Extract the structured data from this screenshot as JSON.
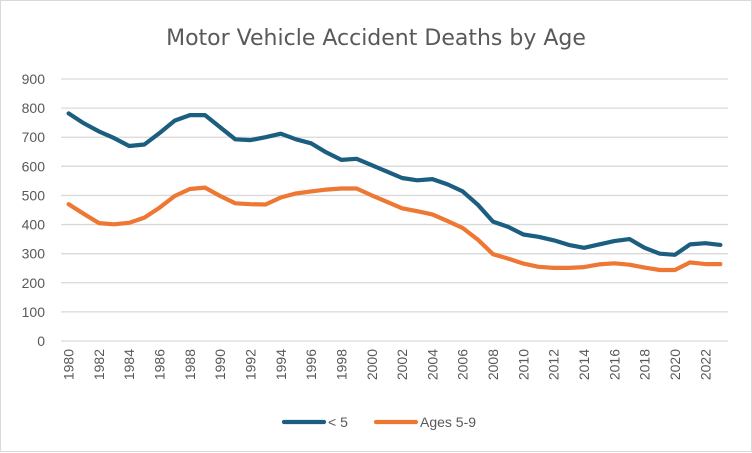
{
  "chart_data": {
    "type": "line",
    "title": "Motor Vehicle Accident Deaths by Age",
    "xlabel": "",
    "ylabel": "",
    "ylim": [
      0,
      900
    ],
    "yticks": [
      0,
      100,
      200,
      300,
      400,
      500,
      600,
      700,
      800,
      900
    ],
    "grid": true,
    "legend_position": "bottom",
    "x": [
      1980,
      1981,
      1982,
      1983,
      1984,
      1985,
      1986,
      1987,
      1988,
      1989,
      1990,
      1991,
      1992,
      1993,
      1994,
      1995,
      1996,
      1997,
      1998,
      1999,
      2000,
      2001,
      2002,
      2003,
      2004,
      2005,
      2006,
      2007,
      2008,
      2009,
      2010,
      2011,
      2012,
      2013,
      2014,
      2015,
      2016,
      2017,
      2018,
      2019,
      2020,
      2021,
      2022,
      2023
    ],
    "xtick_labels": [
      "1980",
      "1982",
      "1984",
      "1986",
      "1988",
      "1990",
      "1992",
      "1994",
      "1996",
      "1998",
      "2000",
      "2002",
      "2004",
      "2006",
      "2008",
      "2010",
      "2012",
      "2014",
      "2016",
      "2018",
      "2020",
      "2022"
    ],
    "series": [
      {
        "name": "< 5",
        "color": "#1b5e80",
        "values": [
          782,
          748,
          720,
          697,
          670,
          675,
          714,
          757,
          776,
          776,
          734,
          693,
          690,
          700,
          712,
          693,
          679,
          648,
          622,
          626,
          604,
          582,
          560,
          552,
          556,
          538,
          514,
          468,
          410,
          392,
          366,
          358,
          346,
          330,
          320,
          332,
          343,
          350,
          320,
          300,
          296,
          332,
          336,
          330
        ]
      },
      {
        "name": "Ages 5-9",
        "color": "#ee7733",
        "values": [
          470,
          437,
          405,
          401,
          406,
          424,
          458,
          498,
          522,
          527,
          498,
          473,
          470,
          469,
          493,
          507,
          514,
          520,
          524,
          524,
          500,
          478,
          456,
          446,
          435,
          412,
          388,
          348,
          298,
          283,
          266,
          255,
          251,
          251,
          254,
          263,
          267,
          262,
          252,
          244,
          244,
          270,
          264,
          264
        ]
      }
    ]
  }
}
